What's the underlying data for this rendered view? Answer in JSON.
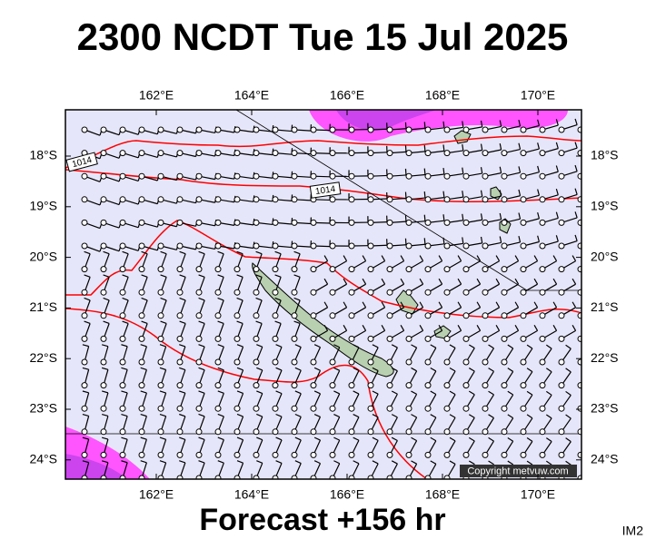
{
  "title": "2300 NCDT Tue 15 Jul 2025",
  "map": {
    "lon_labels": [
      "162°E",
      "164°E",
      "166°E",
      "168°E",
      "170°E"
    ],
    "lat_labels": [
      "18°S",
      "19°S",
      "20°S",
      "21°S",
      "22°S",
      "23°S",
      "24°S"
    ],
    "isobar_labels": [
      "1014",
      "1014"
    ],
    "copyright": "Copyright metvuw.com"
  },
  "footer": "Forecast +156 hr",
  "image_id": "IM2"
}
